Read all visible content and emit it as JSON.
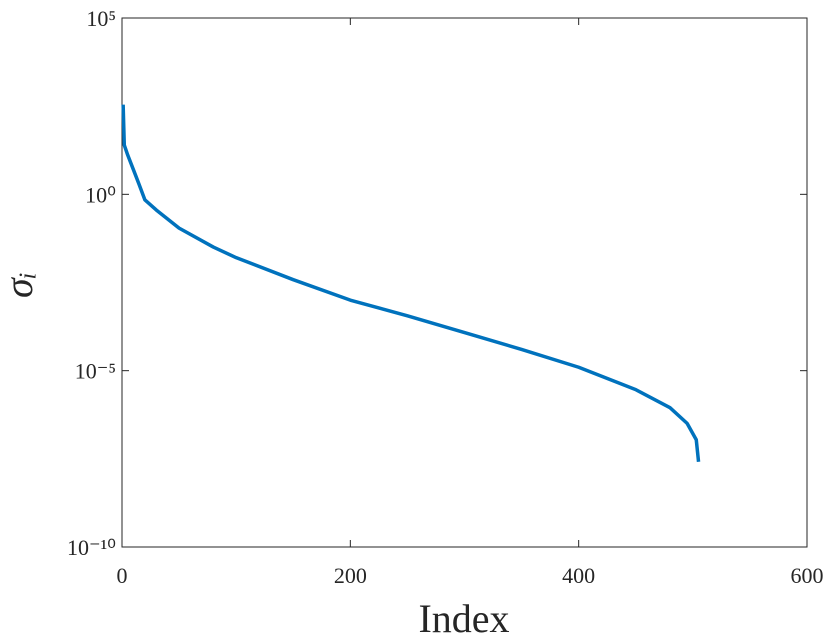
{
  "chart_data": {
    "type": "line",
    "x_label": "Index",
    "y_label": "σᵢ",
    "x": [
      1,
      2,
      5,
      10,
      15,
      20,
      30,
      50,
      80,
      100,
      150,
      200,
      250,
      300,
      350,
      400,
      450,
      480,
      495,
      503,
      505
    ],
    "series": [
      {
        "name": "σᵢ",
        "color": "#0072bd",
        "values": [
          350,
          25,
          13,
          5,
          1.9,
          0.7,
          0.36,
          0.11,
          0.032,
          0.016,
          0.0038,
          0.001,
          0.00036,
          0.00012,
          4e-05,
          1.25e-05,
          2.9e-06,
          8.9e-07,
          3.2e-07,
          1.1e-07,
          2.6e-08
        ]
      }
    ],
    "xlim": [
      0,
      600
    ],
    "xticks": [
      0,
      200,
      400,
      600
    ],
    "ylim": [
      1e-10,
      100000
    ],
    "yticks": [
      {
        "value": 1e-10,
        "label": "10⁻¹⁰"
      },
      {
        "value": 1e-05,
        "label": "10⁻⁵"
      },
      {
        "value": 1,
        "label": "10⁰"
      },
      {
        "value": 100000,
        "label": "10⁵"
      }
    ],
    "y_log": true,
    "grid": false
  }
}
